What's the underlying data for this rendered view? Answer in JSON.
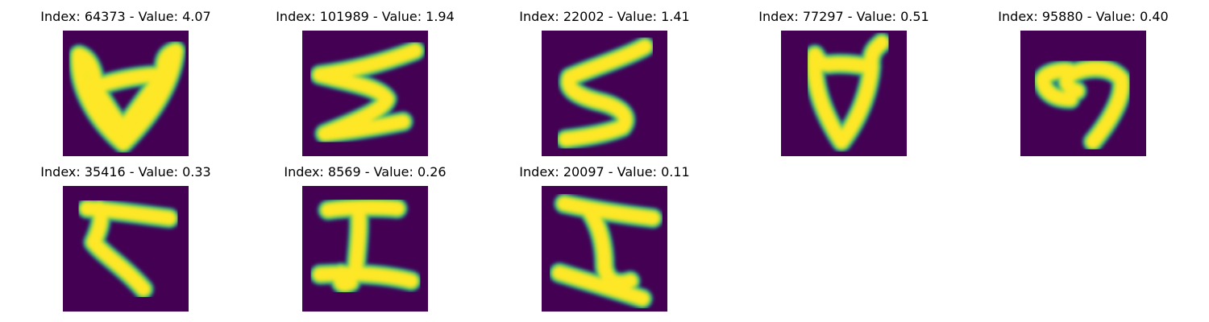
{
  "colors": {
    "background": "#440154",
    "stroke_edge": "#21918c",
    "stroke_mid": "#7ad151",
    "stroke_core": "#fde725"
  },
  "panels": [
    {
      "title": "Index: 64373 - Value: 4.07",
      "glyph": "glyph-64373"
    },
    {
      "title": "Index: 101989 - Value: 1.94",
      "glyph": "glyph-101989"
    },
    {
      "title": "Index: 22002 - Value: 1.41",
      "glyph": "glyph-22002"
    },
    {
      "title": "Index: 77297 - Value: 0.51",
      "glyph": "glyph-77297"
    },
    {
      "title": "Index: 95880 - Value: 0.40",
      "glyph": "glyph-95880"
    },
    {
      "title": "Index: 35416 - Value: 0.33",
      "glyph": "glyph-35416"
    },
    {
      "title": "Index: 8569 - Value: 0.26",
      "glyph": "glyph-8569"
    },
    {
      "title": "Index: 20097 - Value: 0.11",
      "glyph": "glyph-20097"
    }
  ]
}
